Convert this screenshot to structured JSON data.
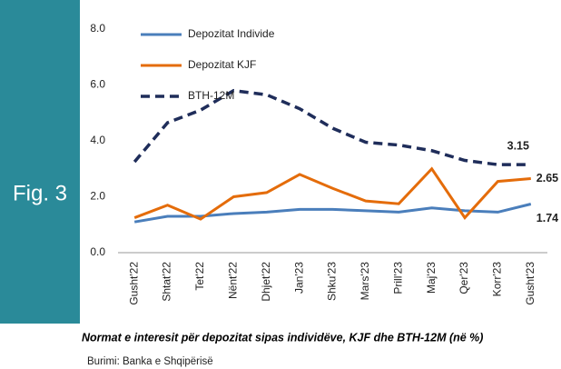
{
  "figure_label": "Fig. 3",
  "caption": "Normat e interesit për depozitat sipas individëve, KJF dhe BTH-12M (në %)",
  "source": "Burimi: Banka e Shqipërisë",
  "chart_data": {
    "type": "line",
    "categories": [
      "Gusht'22",
      "Shtat'22",
      "Tet'22",
      "Nënt'22",
      "Dhjet'22",
      "Jan'23",
      "Shku'23",
      "Mars'23",
      "Prill'23",
      "Maj'23",
      "Qer'23",
      "Korr'23",
      "Gusht'23"
    ],
    "series": [
      {
        "name": "Depozitat Individe",
        "color": "#4a7ebb",
        "dash": false,
        "values": [
          1.1,
          1.3,
          1.3,
          1.4,
          1.45,
          1.55,
          1.55,
          1.5,
          1.45,
          1.6,
          1.5,
          1.45,
          1.74
        ]
      },
      {
        "name": "Depozitat KJF",
        "color": "#e46c0a",
        "dash": false,
        "values": [
          1.25,
          1.7,
          1.2,
          2.0,
          2.15,
          2.8,
          2.3,
          1.85,
          1.75,
          3.0,
          1.25,
          2.55,
          2.65
        ]
      },
      {
        "name": "BTH-12M",
        "color": "#1f2d5a",
        "dash": true,
        "values": [
          3.25,
          4.65,
          5.1,
          5.8,
          5.65,
          5.15,
          4.45,
          3.95,
          3.85,
          3.65,
          3.3,
          3.15,
          3.15
        ]
      }
    ],
    "ylim": [
      0,
      8
    ],
    "yticks": [
      {
        "value": 0,
        "label": "0.0"
      },
      {
        "value": 2,
        "label": "2.0"
      },
      {
        "value": 4,
        "label": "4.0"
      },
      {
        "value": 6,
        "label": "6.0"
      },
      {
        "value": 8,
        "label": "8.0"
      }
    ],
    "grid": false,
    "legend": "top-left"
  }
}
